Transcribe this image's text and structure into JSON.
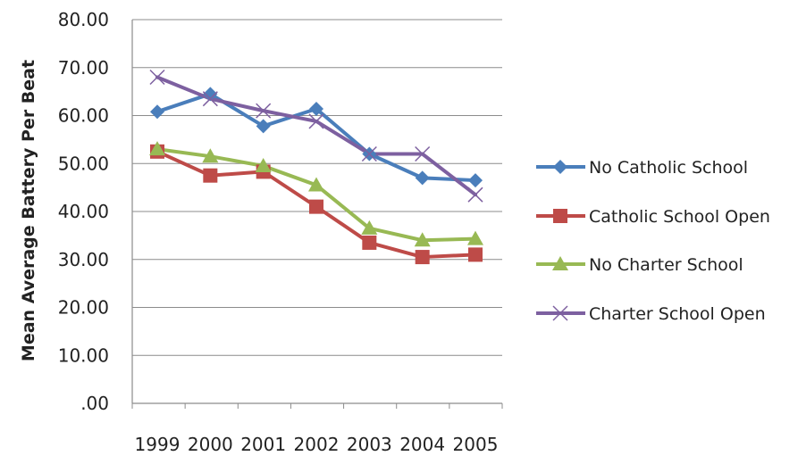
{
  "chart_data": {
    "type": "line",
    "title": "",
    "xlabel": "",
    "ylabel": "Mean Average Battery Per Beat",
    "categories": [
      "1999",
      "2000",
      "2001",
      "2002",
      "2003",
      "2004",
      "2005"
    ],
    "ylim": [
      0,
      80
    ],
    "y_ticks": [
      ".00",
      "10.00",
      "20.00",
      "30.00",
      "40.00",
      "50.00",
      "60.00",
      "70.00",
      "80.00"
    ],
    "grid": true,
    "legend_position": "right",
    "series": [
      {
        "name": "No Catholic School",
        "color": "#4a7ebb",
        "marker": "diamond",
        "values": [
          60.8,
          64.5,
          57.8,
          61.4,
          52.0,
          47.0,
          46.5
        ]
      },
      {
        "name": "Catholic School Open",
        "color": "#be4b48",
        "marker": "square",
        "values": [
          52.5,
          47.5,
          48.3,
          41.0,
          33.5,
          30.5,
          31.0
        ]
      },
      {
        "name": "No Charter School",
        "color": "#98b954",
        "marker": "triangle",
        "values": [
          53.0,
          51.5,
          49.5,
          45.5,
          36.5,
          34.0,
          34.3
        ]
      },
      {
        "name": "Charter School Open",
        "color": "#7d60a0",
        "marker": "x",
        "values": [
          68.0,
          63.5,
          61.0,
          58.8,
          52.0,
          52.0,
          43.5
        ]
      }
    ]
  }
}
